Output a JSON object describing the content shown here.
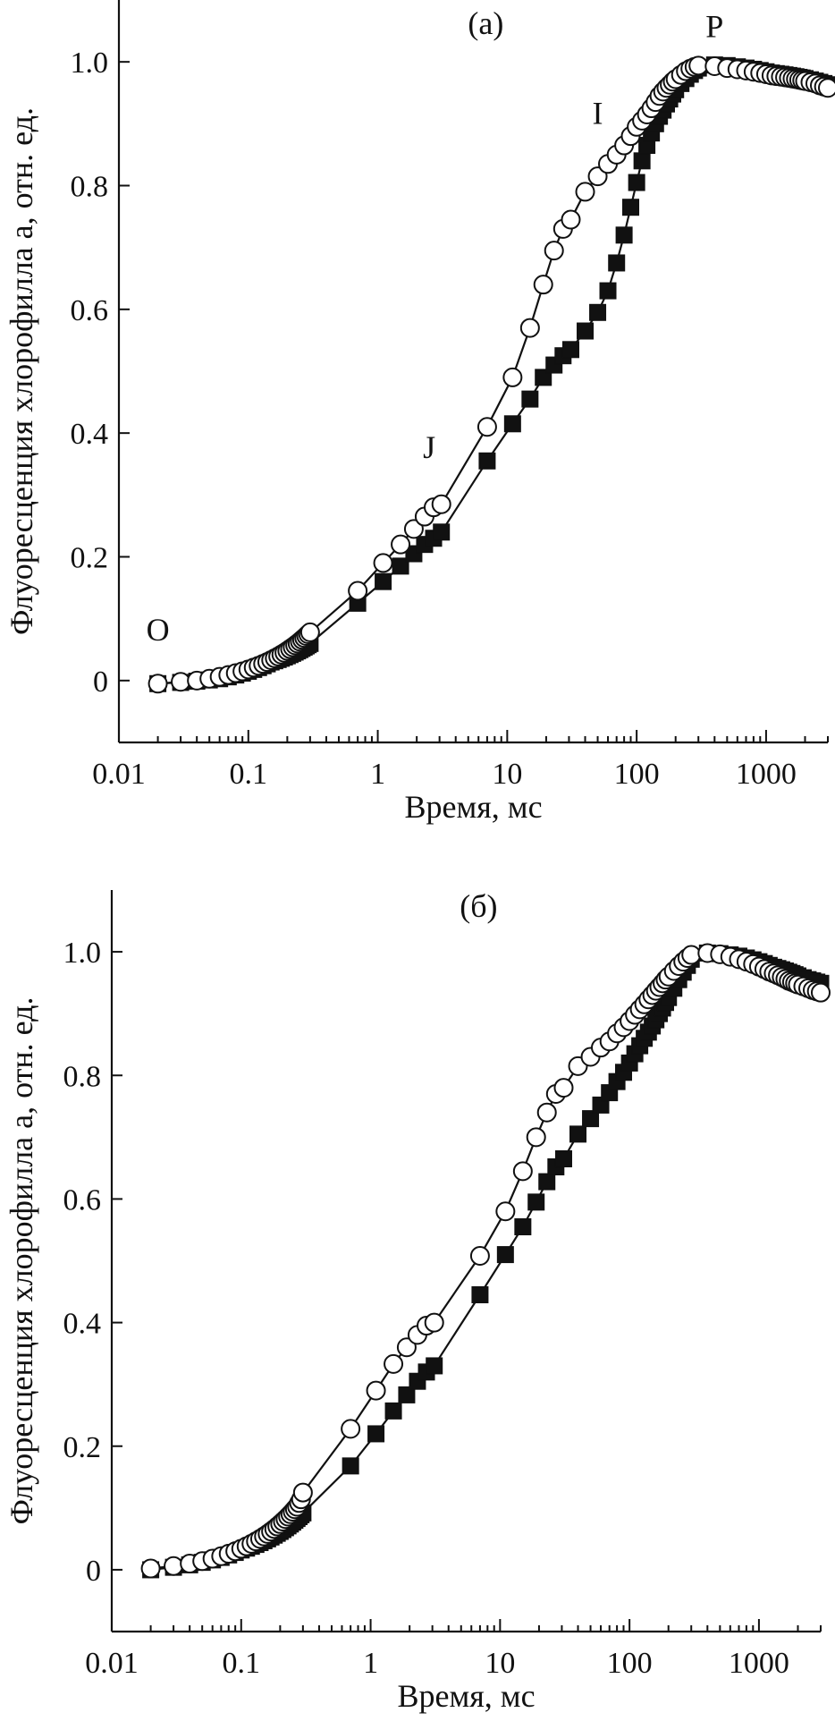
{
  "chart_data": [
    {
      "type": "scatter",
      "panel_label": "(a)",
      "xlabel": "Время, мс",
      "ylabel": "Флуоресценция хлорофилла a, отн. ед.",
      "xscale": "log",
      "xlim": [
        0.01,
        3000
      ],
      "ylim": [
        -0.1,
        1.1
      ],
      "x_ticks": [
        {
          "value": 0.01,
          "label": "0.01"
        },
        {
          "value": 0.1,
          "label": "0.1"
        },
        {
          "value": 1,
          "label": "1"
        },
        {
          "value": 10,
          "label": "10"
        },
        {
          "value": 100,
          "label": "100"
        },
        {
          "value": 1000,
          "label": "1000"
        }
      ],
      "y_ticks": [
        {
          "value": 0,
          "label": "0"
        },
        {
          "value": 0.2,
          "label": "0.2"
        },
        {
          "value": 0.4,
          "label": "0.4"
        },
        {
          "value": 0.6,
          "label": "0.6"
        },
        {
          "value": 0.8,
          "label": "0.8"
        },
        {
          "value": 1.0,
          "label": "1.0"
        }
      ],
      "grid": false,
      "annotations": [
        {
          "text": "O",
          "x": 0.02,
          "y": 0.065
        },
        {
          "text": "J",
          "x": 2.5,
          "y": 0.36
        },
        {
          "text": "I",
          "x": 50,
          "y": 0.9
        },
        {
          "text": "P",
          "x": 400,
          "y": 1.04
        }
      ],
      "series": [
        {
          "marker": "open-circle",
          "x": [
            0.02,
            0.03,
            0.04,
            0.05,
            0.06,
            0.07,
            0.08,
            0.09,
            0.1,
            0.11,
            0.12,
            0.13,
            0.14,
            0.15,
            0.16,
            0.17,
            0.18,
            0.19,
            0.2,
            0.21,
            0.22,
            0.23,
            0.24,
            0.25,
            0.26,
            0.27,
            0.28,
            0.29,
            0.3,
            0.7,
            1.1,
            1.5,
            1.9,
            2.3,
            2.7,
            3.1,
            7,
            11,
            15,
            19,
            23,
            27,
            31,
            40,
            50,
            60,
            70,
            80,
            90,
            100,
            110,
            120,
            130,
            140,
            150,
            160,
            170,
            180,
            190,
            200,
            220,
            240,
            260,
            280,
            300,
            400,
            500,
            600,
            700,
            800,
            900,
            1000,
            1100,
            1200,
            1300,
            1400,
            1500,
            1600,
            1700,
            1800,
            1900,
            2000,
            2200,
            2400,
            2600,
            2800,
            3000
          ],
          "y": [
            -0.005,
            -0.002,
            0.0,
            0.003,
            0.006,
            0.009,
            0.012,
            0.015,
            0.018,
            0.021,
            0.024,
            0.027,
            0.03,
            0.033,
            0.036,
            0.039,
            0.042,
            0.045,
            0.048,
            0.051,
            0.054,
            0.057,
            0.06,
            0.063,
            0.066,
            0.069,
            0.072,
            0.075,
            0.078,
            0.145,
            0.19,
            0.22,
            0.245,
            0.265,
            0.28,
            0.285,
            0.41,
            0.49,
            0.57,
            0.64,
            0.695,
            0.73,
            0.745,
            0.79,
            0.815,
            0.835,
            0.85,
            0.865,
            0.88,
            0.895,
            0.905,
            0.915,
            0.925,
            0.935,
            0.945,
            0.952,
            0.958,
            0.963,
            0.968,
            0.972,
            0.979,
            0.985,
            0.989,
            0.992,
            0.994,
            0.993,
            0.99,
            0.988,
            0.986,
            0.984,
            0.982,
            0.98,
            0.978,
            0.977,
            0.976,
            0.975,
            0.974,
            0.973,
            0.972,
            0.971,
            0.97,
            0.969,
            0.967,
            0.965,
            0.962,
            0.96,
            0.958
          ]
        },
        {
          "marker": "filled-square",
          "x": [
            0.02,
            0.03,
            0.04,
            0.05,
            0.06,
            0.07,
            0.08,
            0.09,
            0.1,
            0.11,
            0.12,
            0.13,
            0.14,
            0.15,
            0.16,
            0.17,
            0.18,
            0.19,
            0.2,
            0.21,
            0.22,
            0.23,
            0.24,
            0.25,
            0.26,
            0.27,
            0.28,
            0.29,
            0.3,
            0.7,
            1.1,
            1.5,
            1.9,
            2.3,
            2.7,
            3.1,
            7,
            11,
            15,
            19,
            23,
            27,
            31,
            40,
            50,
            60,
            70,
            80,
            90,
            100,
            110,
            120,
            130,
            140,
            150,
            160,
            170,
            180,
            190,
            200,
            220,
            240,
            260,
            280,
            300,
            400,
            500,
            600,
            700,
            800,
            900,
            1000,
            1100,
            1200,
            1300,
            1400,
            1500,
            1600,
            1700,
            1800,
            1900,
            2000,
            2200,
            2400,
            2600,
            2800,
            3000
          ],
          "y": [
            -0.005,
            -0.003,
            -0.001,
            0.001,
            0.003,
            0.006,
            0.009,
            0.012,
            0.015,
            0.018,
            0.021,
            0.024,
            0.027,
            0.03,
            0.032,
            0.034,
            0.036,
            0.038,
            0.04,
            0.042,
            0.044,
            0.046,
            0.048,
            0.05,
            0.052,
            0.054,
            0.056,
            0.058,
            0.06,
            0.125,
            0.16,
            0.185,
            0.205,
            0.22,
            0.23,
            0.24,
            0.355,
            0.415,
            0.455,
            0.49,
            0.51,
            0.525,
            0.535,
            0.565,
            0.595,
            0.63,
            0.675,
            0.72,
            0.765,
            0.805,
            0.84,
            0.865,
            0.885,
            0.9,
            0.912,
            0.922,
            0.932,
            0.94,
            0.948,
            0.955,
            0.965,
            0.973,
            0.98,
            0.986,
            0.99,
            0.995,
            0.994,
            0.992,
            0.99,
            0.988,
            0.986,
            0.984,
            0.982,
            0.981,
            0.98,
            0.979,
            0.978,
            0.977,
            0.976,
            0.975,
            0.974,
            0.973,
            0.971,
            0.969,
            0.967,
            0.965,
            0.963
          ]
        }
      ]
    },
    {
      "type": "scatter",
      "panel_label": "(б)",
      "xlabel": "Время, мс",
      "ylabel": "Флуоресценция хлорофилла a, отн. ед.",
      "xscale": "log",
      "xlim": [
        0.01,
        3000
      ],
      "ylim": [
        -0.1,
        1.1
      ],
      "x_ticks": [
        {
          "value": 0.01,
          "label": "0.01"
        },
        {
          "value": 0.1,
          "label": "0.1"
        },
        {
          "value": 1,
          "label": "1"
        },
        {
          "value": 10,
          "label": "10"
        },
        {
          "value": 100,
          "label": "100"
        },
        {
          "value": 1000,
          "label": "1000"
        }
      ],
      "y_ticks": [
        {
          "value": 0,
          "label": "0"
        },
        {
          "value": 0.2,
          "label": "0.2"
        },
        {
          "value": 0.4,
          "label": "0.4"
        },
        {
          "value": 0.6,
          "label": "0.6"
        },
        {
          "value": 0.8,
          "label": "0.8"
        },
        {
          "value": 1.0,
          "label": "1.0"
        }
      ],
      "grid": false,
      "annotations": [],
      "series": [
        {
          "marker": "open-circle",
          "x": [
            0.02,
            0.03,
            0.04,
            0.05,
            0.06,
            0.07,
            0.08,
            0.09,
            0.1,
            0.11,
            0.12,
            0.13,
            0.14,
            0.15,
            0.16,
            0.17,
            0.18,
            0.19,
            0.2,
            0.21,
            0.22,
            0.23,
            0.24,
            0.25,
            0.26,
            0.27,
            0.28,
            0.29,
            0.3,
            0.7,
            1.1,
            1.5,
            1.9,
            2.3,
            2.7,
            3.1,
            7,
            11,
            15,
            19,
            23,
            27,
            31,
            40,
            50,
            60,
            70,
            80,
            90,
            100,
            110,
            120,
            130,
            140,
            150,
            160,
            170,
            180,
            190,
            200,
            220,
            240,
            260,
            280,
            300,
            400,
            500,
            600,
            700,
            800,
            900,
            1000,
            1100,
            1200,
            1300,
            1400,
            1500,
            1600,
            1700,
            1800,
            1900,
            2000,
            2200,
            2400,
            2600,
            2800,
            3000
          ],
          "y": [
            0.002,
            0.006,
            0.01,
            0.014,
            0.018,
            0.022,
            0.026,
            0.03,
            0.034,
            0.038,
            0.042,
            0.046,
            0.05,
            0.054,
            0.058,
            0.062,
            0.066,
            0.07,
            0.074,
            0.078,
            0.082,
            0.086,
            0.09,
            0.094,
            0.098,
            0.102,
            0.108,
            0.114,
            0.125,
            0.228,
            0.29,
            0.333,
            0.36,
            0.38,
            0.395,
            0.4,
            0.508,
            0.58,
            0.645,
            0.7,
            0.74,
            0.77,
            0.78,
            0.815,
            0.83,
            0.845,
            0.855,
            0.868,
            0.878,
            0.888,
            0.898,
            0.907,
            0.915,
            0.923,
            0.93,
            0.937,
            0.943,
            0.949,
            0.955,
            0.96,
            0.969,
            0.977,
            0.984,
            0.99,
            0.995,
            0.998,
            0.996,
            0.992,
            0.988,
            0.984,
            0.98,
            0.976,
            0.972,
            0.968,
            0.965,
            0.962,
            0.959,
            0.956,
            0.953,
            0.951,
            0.949,
            0.947,
            0.944,
            0.941,
            0.938,
            0.936,
            0.934
          ]
        },
        {
          "marker": "filled-square",
          "x": [
            0.02,
            0.03,
            0.04,
            0.05,
            0.06,
            0.07,
            0.08,
            0.09,
            0.1,
            0.11,
            0.12,
            0.13,
            0.14,
            0.15,
            0.16,
            0.17,
            0.18,
            0.19,
            0.2,
            0.21,
            0.22,
            0.23,
            0.24,
            0.25,
            0.26,
            0.27,
            0.28,
            0.29,
            0.3,
            0.7,
            1.1,
            1.5,
            1.9,
            2.3,
            2.7,
            3.1,
            7,
            11,
            15,
            19,
            23,
            27,
            31,
            40,
            50,
            60,
            70,
            80,
            90,
            100,
            110,
            120,
            130,
            140,
            150,
            160,
            170,
            180,
            190,
            200,
            220,
            240,
            260,
            280,
            300,
            400,
            500,
            600,
            700,
            800,
            900,
            1000,
            1100,
            1200,
            1300,
            1400,
            1500,
            1600,
            1700,
            1800,
            1900,
            2000,
            2200,
            2400,
            2600,
            2800,
            3000
          ],
          "y": [
            0.0,
            0.004,
            0.008,
            0.012,
            0.016,
            0.02,
            0.024,
            0.028,
            0.032,
            0.035,
            0.038,
            0.041,
            0.044,
            0.047,
            0.05,
            0.053,
            0.056,
            0.059,
            0.062,
            0.065,
            0.068,
            0.071,
            0.074,
            0.077,
            0.08,
            0.083,
            0.086,
            0.089,
            0.092,
            0.168,
            0.22,
            0.257,
            0.283,
            0.305,
            0.32,
            0.33,
            0.445,
            0.51,
            0.555,
            0.595,
            0.628,
            0.652,
            0.665,
            0.705,
            0.73,
            0.752,
            0.772,
            0.79,
            0.805,
            0.82,
            0.835,
            0.848,
            0.86,
            0.87,
            0.88,
            0.89,
            0.9,
            0.909,
            0.918,
            0.926,
            0.941,
            0.955,
            0.967,
            0.978,
            0.988,
            0.998,
            0.997,
            0.995,
            0.993,
            0.99,
            0.987,
            0.984,
            0.981,
            0.978,
            0.975,
            0.973,
            0.971,
            0.969,
            0.967,
            0.965,
            0.963,
            0.961,
            0.958,
            0.955,
            0.953,
            0.951,
            0.949
          ]
        }
      ]
    }
  ]
}
